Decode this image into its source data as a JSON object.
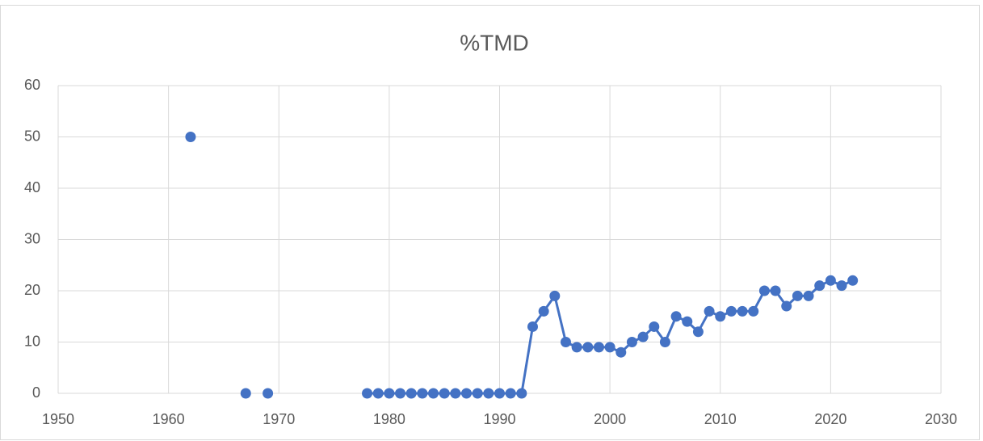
{
  "chart_data": {
    "type": "line",
    "title": "%TMD",
    "x": [
      1962,
      1963,
      1964,
      1965,
      1966,
      1967,
      1968,
      1969,
      1970,
      1971,
      1972,
      1973,
      1974,
      1975,
      1976,
      1977,
      1978,
      1979,
      1980,
      1981,
      1982,
      1983,
      1984,
      1985,
      1986,
      1987,
      1988,
      1989,
      1990,
      1991,
      1992,
      1993,
      1994,
      1995,
      1996,
      1997,
      1998,
      1999,
      2000,
      2001,
      2002,
      2003,
      2004,
      2005,
      2006,
      2007,
      2008,
      2009,
      2010,
      2011,
      2012,
      2013,
      2014,
      2015,
      2016,
      2017,
      2018,
      2019,
      2020,
      2021,
      2022
    ],
    "series": [
      {
        "name": "%TMD",
        "color": "#4472c4",
        "values": [
          50,
          null,
          null,
          null,
          null,
          0,
          null,
          0,
          null,
          null,
          null,
          null,
          null,
          null,
          null,
          null,
          0,
          0,
          0,
          0,
          0,
          0,
          0,
          0,
          0,
          0,
          0,
          0,
          0,
          0,
          0,
          13,
          16,
          19,
          10,
          9,
          9,
          9,
          9,
          8,
          10,
          11,
          13,
          10,
          15,
          14,
          12,
          16,
          15,
          16,
          16,
          16,
          20,
          20,
          17,
          19,
          19,
          21,
          22,
          21,
          22
        ]
      }
    ],
    "xlim": [
      1950,
      2030
    ],
    "xticks": [
      1950,
      1960,
      1970,
      1980,
      1990,
      2000,
      2010,
      2020,
      2030
    ],
    "ylim": [
      0,
      60
    ],
    "yticks": [
      0,
      10,
      20,
      30,
      40,
      50,
      60
    ],
    "grid": true
  }
}
